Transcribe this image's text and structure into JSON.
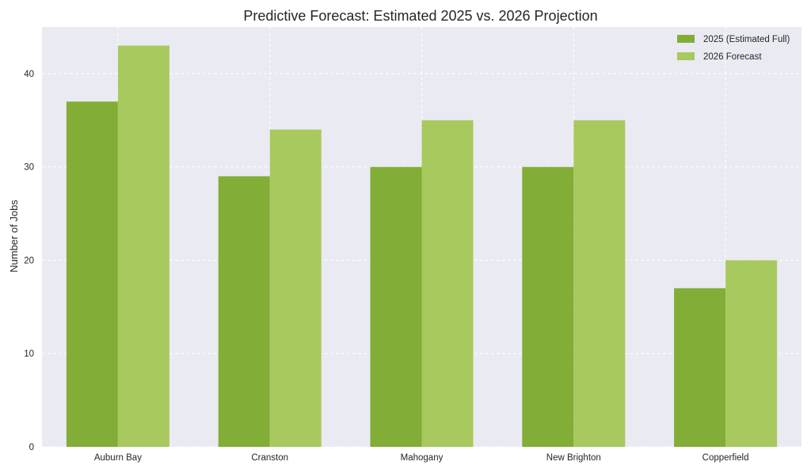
{
  "chart_data": {
    "type": "bar",
    "title": "Predictive Forecast: Estimated 2025 vs. 2026 Projection",
    "xlabel": "",
    "ylabel": "Number of Jobs",
    "categories": [
      "Auburn Bay",
      "Cranston",
      "Mahogany",
      "New Brighton",
      "Copperfield"
    ],
    "series": [
      {
        "name": "2025 (Estimated Full)",
        "values": [
          37,
          29,
          30,
          30,
          17
        ],
        "color": "#82ad36"
      },
      {
        "name": "2026 Forecast",
        "values": [
          43,
          34,
          35,
          35,
          20
        ],
        "color": "#a7c95e"
      }
    ],
    "ylim": [
      0,
      45
    ],
    "yticks": [
      0,
      10,
      20,
      30,
      40
    ],
    "grid": true,
    "legend_position": "top-right",
    "background_color": "#eaeaf2"
  }
}
